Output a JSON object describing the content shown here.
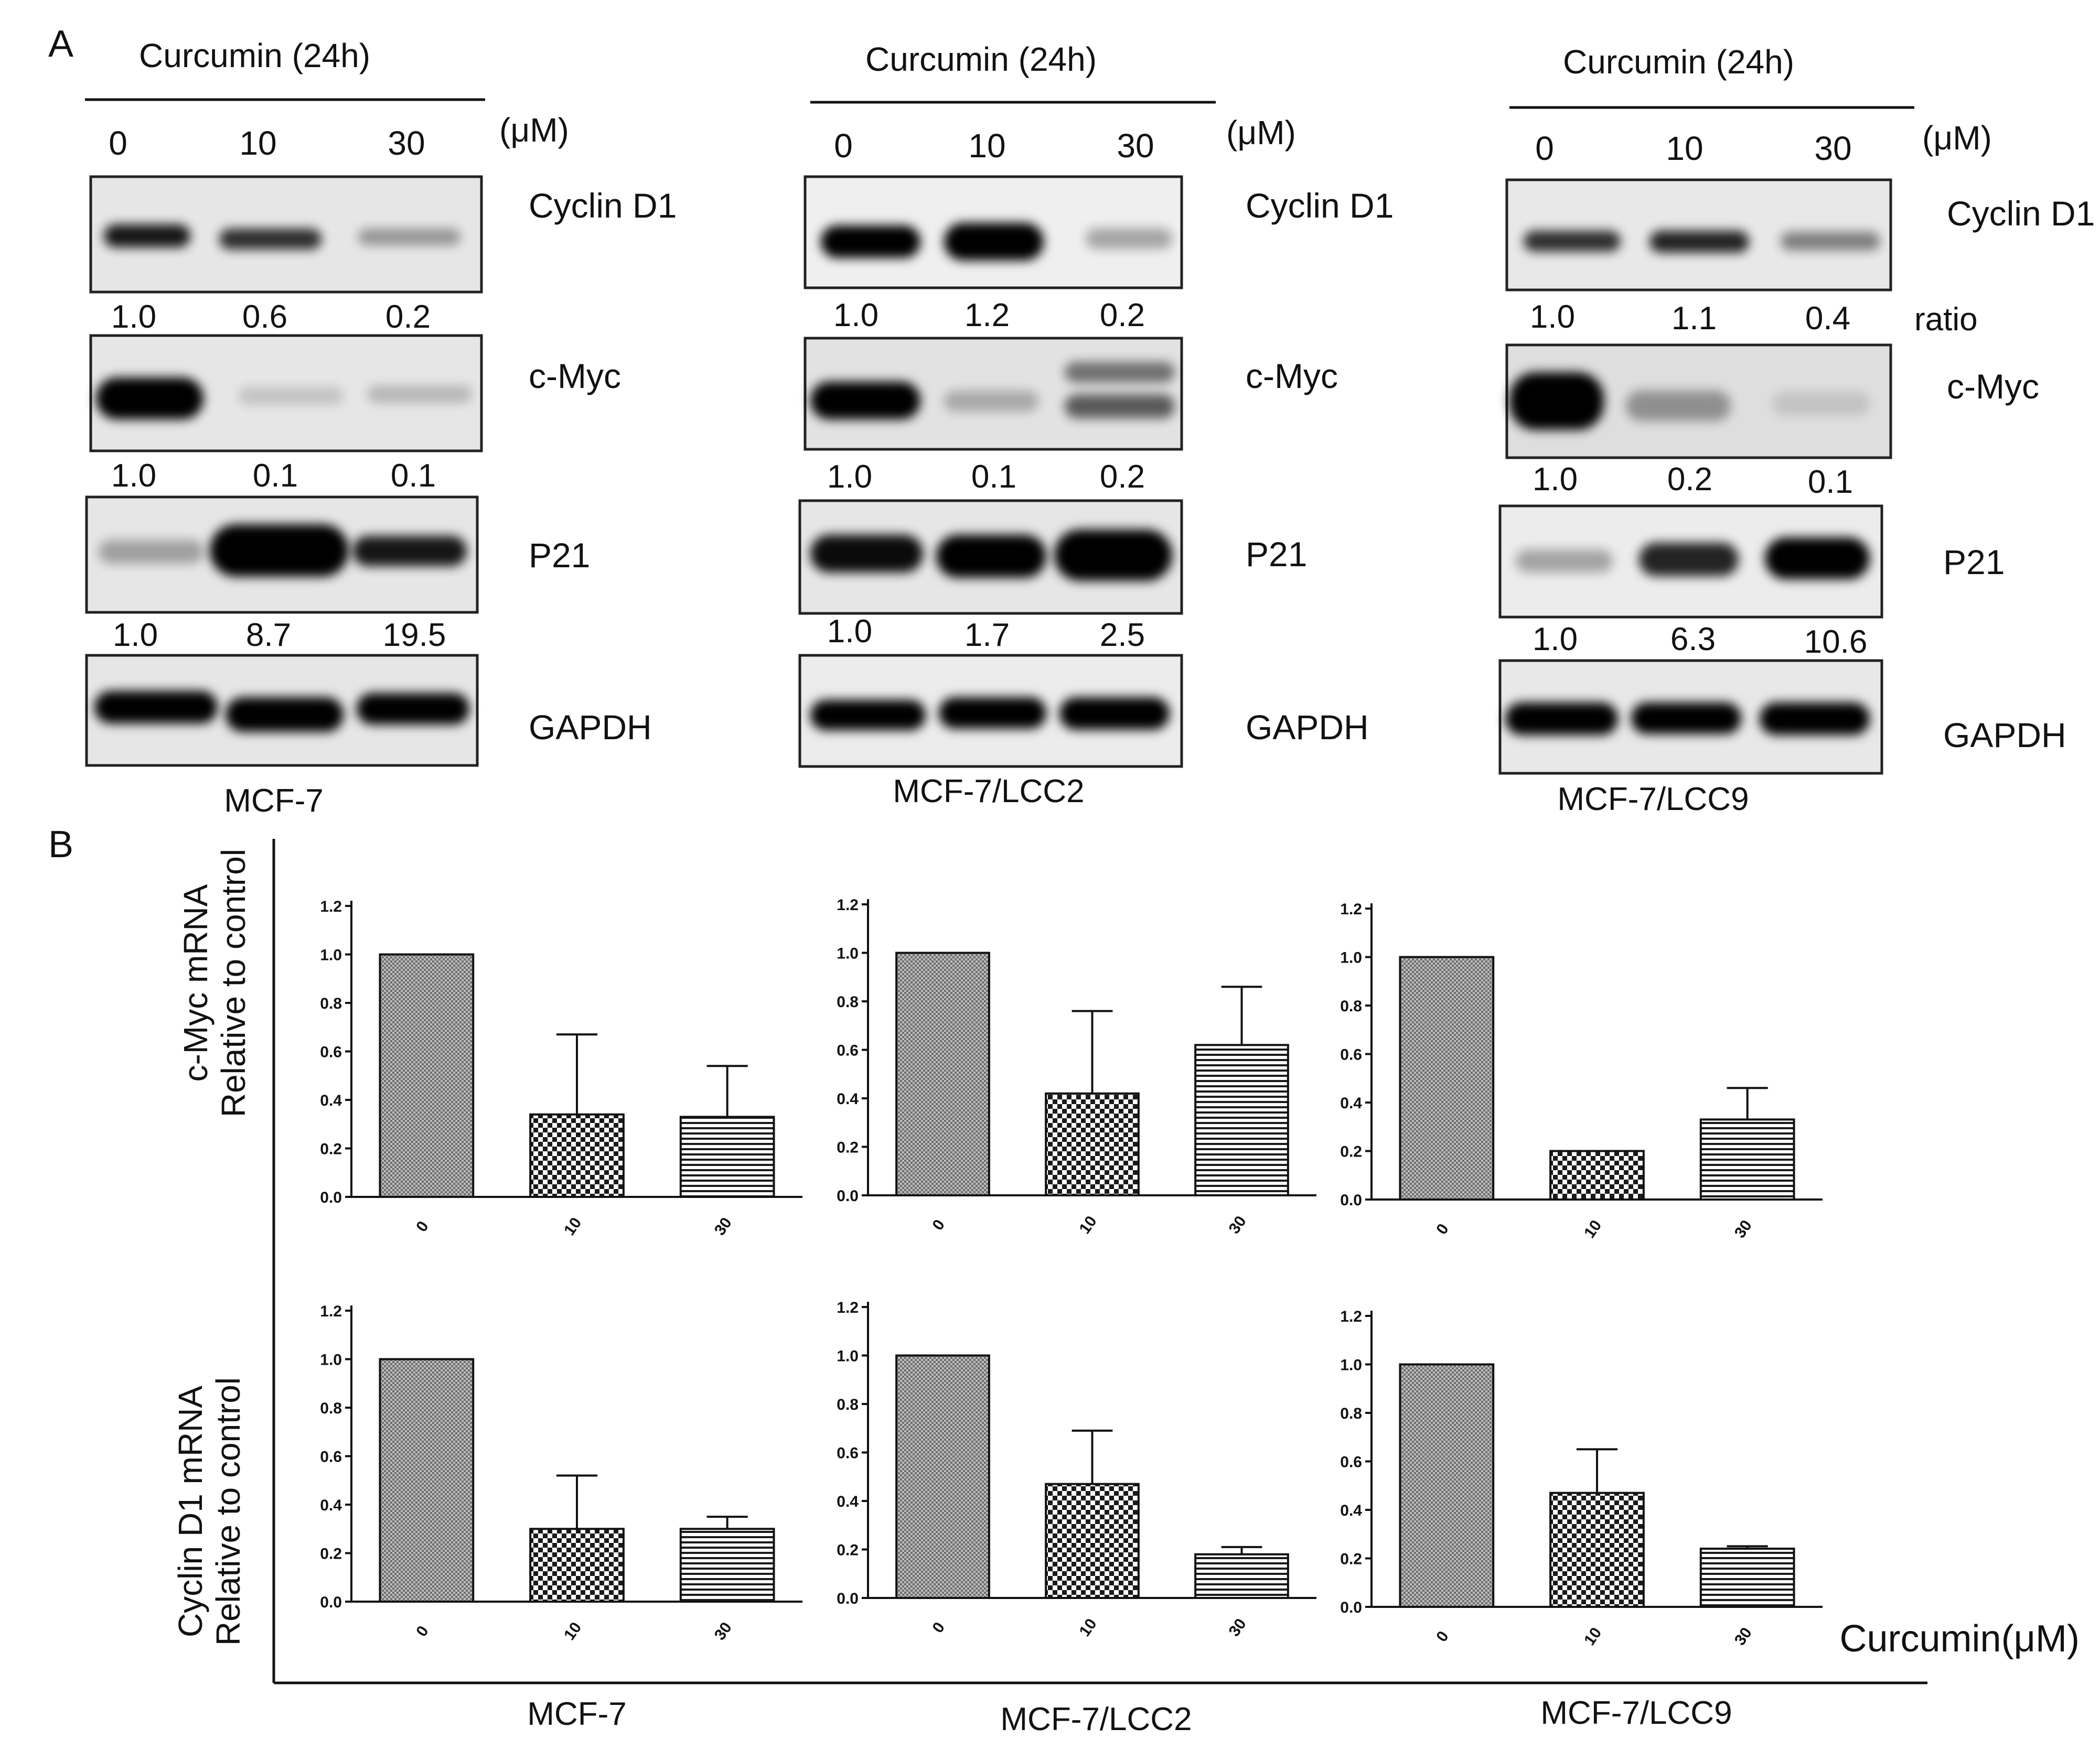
{
  "panel_a": {
    "letter": "A",
    "unit_label": "(μM)",
    "ratio_label": "ratio",
    "blots": [
      {
        "cell_line": "MCF-7",
        "treatment": "Curcumin (24h)",
        "doses": [
          "0",
          "10",
          "30"
        ],
        "proteins": [
          {
            "name": "Cyclin D1",
            "ratios": [
              "1.0",
              "0.6",
              "0.2"
            ],
            "intensity": [
              0.9,
              0.8,
              0.35
            ]
          },
          {
            "name": "c-Myc",
            "ratios": [
              "1.0",
              "0.1",
              "0.1"
            ],
            "intensity": [
              1.0,
              0.15,
              0.2
            ]
          },
          {
            "name": "P21",
            "ratios": [
              "1.0",
              "8.7",
              "19.5"
            ],
            "intensity": [
              0.3,
              1.0,
              0.9
            ]
          },
          {
            "name": "GAPDH",
            "ratios": [],
            "intensity": [
              1.0,
              1.0,
              1.0
            ]
          }
        ]
      },
      {
        "cell_line": "MCF-7/LCC2",
        "treatment": "Curcumin (24h)",
        "doses": [
          "0",
          "10",
          "30"
        ],
        "proteins": [
          {
            "name": "Cyclin D1",
            "ratios": [
              "1.0",
              "1.2",
              "0.2"
            ],
            "intensity": [
              1.0,
              1.0,
              0.3
            ]
          },
          {
            "name": "c-Myc",
            "ratios": [
              "1.0",
              "0.1",
              "0.2"
            ],
            "intensity": [
              1.0,
              0.25,
              0.5
            ]
          },
          {
            "name": "P21",
            "ratios": [
              "1.0",
              "1.7",
              "2.5"
            ],
            "intensity": [
              0.9,
              0.95,
              1.0
            ]
          },
          {
            "name": "GAPDH",
            "ratios": [],
            "intensity": [
              1.0,
              1.0,
              1.0
            ]
          }
        ]
      },
      {
        "cell_line": "MCF-7/LCC9",
        "treatment": "Curcumin (24h)",
        "doses": [
          "0",
          "10",
          "30"
        ],
        "proteins": [
          {
            "name": "Cyclin D1",
            "ratios": [
              "1.0",
              "1.1",
              "0.4"
            ],
            "intensity": [
              0.8,
              0.85,
              0.45
            ]
          },
          {
            "name": "c-Myc",
            "ratios": [
              "1.0",
              "0.2",
              "0.1"
            ],
            "intensity": [
              1.0,
              0.35,
              0.12
            ]
          },
          {
            "name": "P21",
            "ratios": [
              "1.0",
              "6.3",
              "10.6"
            ],
            "intensity": [
              0.3,
              0.85,
              1.0
            ]
          },
          {
            "name": "GAPDH",
            "ratios": [],
            "intensity": [
              1.0,
              1.0,
              1.0
            ]
          }
        ]
      }
    ]
  },
  "panel_b": {
    "letter": "B",
    "x_axis_label": "Curcumin(μM)",
    "row_labels": [
      [
        "c-Myc mRNA",
        "Relative to control"
      ],
      [
        "Cyclin D1 mRNA",
        "Relative to control"
      ]
    ],
    "cell_lines": [
      "MCF-7",
      "MCF-7/LCC2",
      "MCF-7/LCC9"
    ]
  },
  "chart_data": [
    {
      "type": "bar",
      "cell_line": "MCF-7",
      "gene": "c-Myc",
      "categories": [
        "0",
        "10",
        "30"
      ],
      "values": [
        1.0,
        0.34,
        0.33
      ],
      "errors": [
        0,
        0.33,
        0.21
      ],
      "ylim": [
        0,
        1.2
      ],
      "yticks": [
        "0.0",
        "0.2",
        "0.4",
        "0.6",
        "0.8",
        "1.0",
        "1.2"
      ],
      "patterns": [
        "dots",
        "checker",
        "stripes"
      ]
    },
    {
      "type": "bar",
      "cell_line": "MCF-7/LCC2",
      "gene": "c-Myc",
      "categories": [
        "0",
        "10",
        "30"
      ],
      "values": [
        1.0,
        0.42,
        0.62
      ],
      "errors": [
        0,
        0.34,
        0.24
      ],
      "ylim": [
        0,
        1.2
      ],
      "yticks": [
        "0.0",
        "0.2",
        "0.4",
        "0.6",
        "0.8",
        "1.0",
        "1.2"
      ],
      "patterns": [
        "dots",
        "checker",
        "stripes"
      ]
    },
    {
      "type": "bar",
      "cell_line": "MCF-7/LCC9",
      "gene": "c-Myc",
      "categories": [
        "0",
        "10",
        "30"
      ],
      "values": [
        1.0,
        0.2,
        0.33
      ],
      "errors": [
        0,
        0,
        0.13
      ],
      "ylim": [
        0,
        1.2
      ],
      "yticks": [
        "0.0",
        "0.2",
        "0.4",
        "0.6",
        "0.8",
        "1.0",
        "1.2"
      ],
      "patterns": [
        "dots",
        "checker",
        "stripes"
      ]
    },
    {
      "type": "bar",
      "cell_line": "MCF-7",
      "gene": "Cyclin D1",
      "categories": [
        "0",
        "10",
        "30"
      ],
      "values": [
        1.0,
        0.3,
        0.3
      ],
      "errors": [
        0,
        0.22,
        0.05
      ],
      "ylim": [
        0,
        1.2
      ],
      "yticks": [
        "0.0",
        "0.2",
        "0.4",
        "0.6",
        "0.8",
        "1.0",
        "1.2"
      ],
      "patterns": [
        "dots",
        "checker",
        "stripes"
      ]
    },
    {
      "type": "bar",
      "cell_line": "MCF-7/LCC2",
      "gene": "Cyclin D1",
      "categories": [
        "0",
        "10",
        "30"
      ],
      "values": [
        1.0,
        0.47,
        0.18
      ],
      "errors": [
        0,
        0.22,
        0.03
      ],
      "ylim": [
        0,
        1.2
      ],
      "yticks": [
        "0.0",
        "0.2",
        "0.4",
        "0.6",
        "0.8",
        "1.0",
        "1.2"
      ],
      "patterns": [
        "dots",
        "checker",
        "stripes"
      ]
    },
    {
      "type": "bar",
      "cell_line": "MCF-7/LCC9",
      "gene": "Cyclin D1",
      "categories": [
        "0",
        "10",
        "30"
      ],
      "values": [
        1.0,
        0.47,
        0.24
      ],
      "errors": [
        0,
        0.18,
        0.01
      ],
      "ylim": [
        0,
        1.2
      ],
      "yticks": [
        "0.0",
        "0.2",
        "0.4",
        "0.6",
        "0.8",
        "1.0",
        "1.2"
      ],
      "patterns": [
        "dots",
        "checker",
        "stripes"
      ]
    }
  ]
}
